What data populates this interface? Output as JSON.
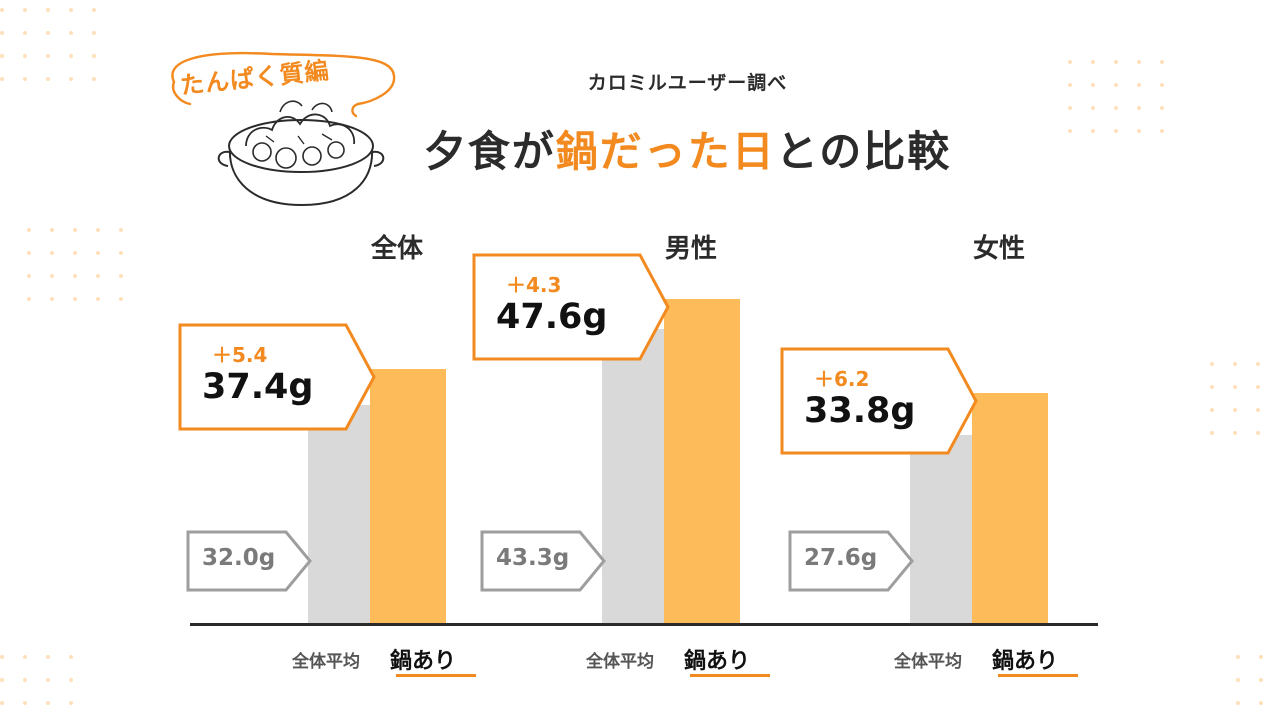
{
  "badge": {
    "label": "たんぱく質編",
    "illustration": "nabe-pot-icon"
  },
  "header": {
    "subtitle": "カロミルユーザー調べ",
    "title_pre": "夕食が",
    "title_highlight": "鍋だった日",
    "title_post": "との比較"
  },
  "colors": {
    "accent": "#f28a1f",
    "nabe_bar": "#fdbb5a",
    "average_bar": "#d9d9d9",
    "average_outline": "#9e9e9e",
    "dots": "#fde0b8"
  },
  "chart_data": {
    "type": "bar",
    "categories": [
      "全体",
      "男性",
      "女性"
    ],
    "series": [
      {
        "name": "全体平均",
        "values": [
          32.0,
          43.3,
          27.6
        ]
      },
      {
        "name": "鍋あり",
        "values": [
          37.4,
          47.6,
          33.8
        ]
      }
    ],
    "value_labels": {
      "average": [
        "32.0g",
        "43.3g",
        "27.6g"
      ],
      "nabe": [
        "37.4g",
        "47.6g",
        "33.8g"
      ]
    },
    "differences": [
      "＋5.4",
      "＋4.3",
      "＋6.2"
    ],
    "unit": "g",
    "ylim": [
      0,
      50
    ],
    "grid": false
  }
}
